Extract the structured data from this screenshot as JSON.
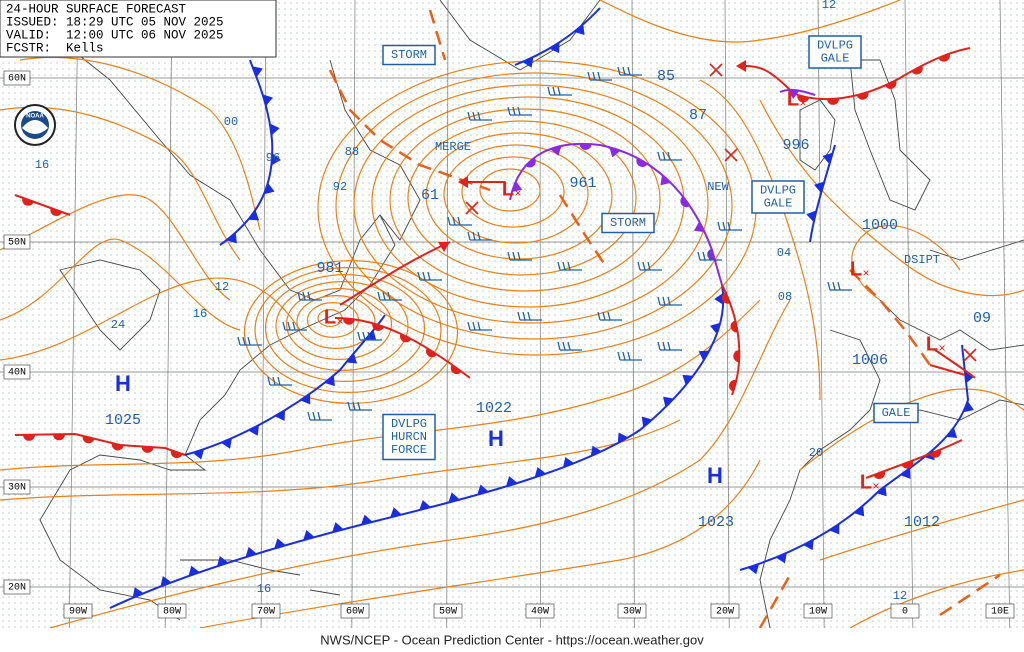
{
  "header": {
    "title": "24-HOUR SURFACE FORECAST",
    "issued": "ISSUED: 18:29 UTC 05 NOV 2025",
    "valid": "VALID:  12:00 UTC 06 NOV 2025",
    "forecaster": "FCSTR:  Kells"
  },
  "logo": "NOAA",
  "footer": "NWS/NCEP - Ocean Prediction Center - https://ocean.weather.gov",
  "latitude_labels": [
    "60N",
    "50N",
    "40N",
    "30N",
    "20N"
  ],
  "longitude_labels": [
    "90W",
    "80W",
    "70W",
    "60W",
    "50W",
    "40W",
    "30W",
    "20W",
    "10W",
    "0",
    "10E"
  ],
  "pressure_labels": [
    "981",
    "61",
    "961",
    "1025",
    "1022",
    "1023",
    "1012",
    "996",
    "1000",
    "1006",
    "85",
    "87",
    "09"
  ],
  "isobar_labels": [
    "00",
    "96",
    "88",
    "92",
    "16",
    "12",
    "16",
    "24",
    "16",
    "12",
    "04",
    "08",
    "20",
    "12"
  ],
  "high_low_symbols": [
    "H",
    "H",
    "H",
    "L",
    "L",
    "L",
    "L",
    "L",
    "L"
  ],
  "warning_boxes": [
    [
      "STORM"
    ],
    [
      "STORM"
    ],
    [
      "DVLPG",
      "GALE"
    ],
    [
      "DVLPG",
      "GALE"
    ],
    [
      "DVLPG",
      "HURCN",
      "FORCE"
    ],
    [
      "GALE"
    ]
  ],
  "annotations": [
    "MERGE",
    "NEW",
    "DSIPT"
  ]
}
